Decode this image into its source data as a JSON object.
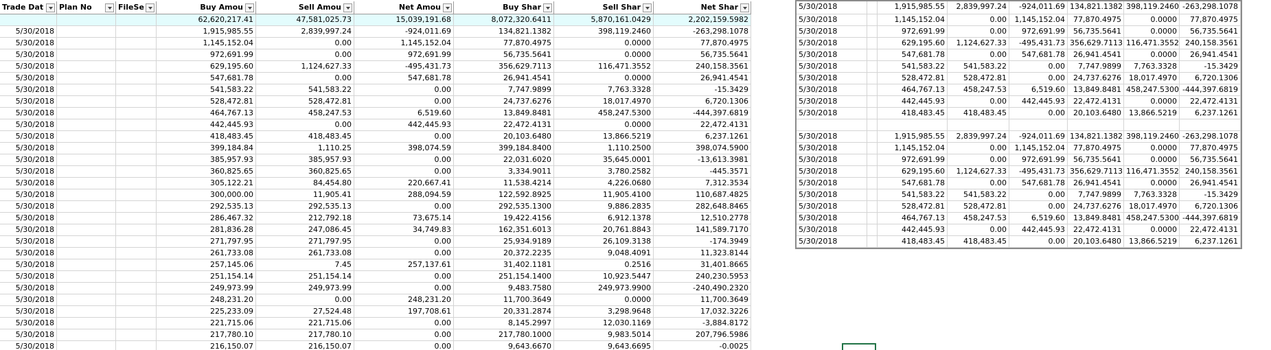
{
  "left_table": {
    "headers": [
      "Trade Dat",
      "Plan No",
      "FileSe",
      "Buy Amou",
      "Sell Amou",
      "Net Amou",
      "Buy Shar",
      "Sell Shar",
      "Net  Shar"
    ],
    "totals": [
      "62,620,217.41",
      "47,581,025.73",
      "15,039,191.68",
      "8,072,320.6411",
      "5,870,161.0429",
      "2,202,159.5982"
    ],
    "rows": [
      [
        "5/30/2018",
        "1,915,985.55",
        "2,839,997.24",
        "-924,011.69",
        "134,821.1382",
        "398,119.2460",
        "-263,298.1078"
      ],
      [
        "5/30/2018",
        "1,145,152.04",
        "0.00",
        "1,145,152.04",
        "77,870.4975",
        "0.0000",
        "77,870.4975"
      ],
      [
        "5/30/2018",
        "972,691.99",
        "0.00",
        "972,691.99",
        "56,735.5641",
        "0.0000",
        "56,735.5641"
      ],
      [
        "5/30/2018",
        "629,195.60",
        "1,124,627.33",
        "-495,431.73",
        "356,629.7113",
        "116,471.3552",
        "240,158.3561"
      ],
      [
        "5/30/2018",
        "547,681.78",
        "0.00",
        "547,681.78",
        "26,941.4541",
        "0.0000",
        "26,941.4541"
      ],
      [
        "5/30/2018",
        "541,583.22",
        "541,583.22",
        "0.00",
        "7,747.9899",
        "7,763.3328",
        "-15.3429"
      ],
      [
        "5/30/2018",
        "528,472.81",
        "528,472.81",
        "0.00",
        "24,737.6276",
        "18,017.4970",
        "6,720.1306"
      ],
      [
        "5/30/2018",
        "464,767.13",
        "458,247.53",
        "6,519.60",
        "13,849.8481",
        "458,247.5300",
        "-444,397.6819"
      ],
      [
        "5/30/2018",
        "442,445.93",
        "0.00",
        "442,445.93",
        "22,472.4131",
        "0.0000",
        "22,472.4131"
      ],
      [
        "5/30/2018",
        "418,483.45",
        "418,483.45",
        "0.00",
        "20,103.6480",
        "13,866.5219",
        "6,237.1261"
      ],
      [
        "5/30/2018",
        "399,184.84",
        "1,110.25",
        "398,074.59",
        "399,184.8400",
        "1,110.2500",
        "398,074.5900"
      ],
      [
        "5/30/2018",
        "385,957.93",
        "385,957.93",
        "0.00",
        "22,031.6020",
        "35,645.0001",
        "-13,613.3981"
      ],
      [
        "5/30/2018",
        "360,825.65",
        "360,825.65",
        "0.00",
        "3,334.9011",
        "3,780.2582",
        "-445.3571"
      ],
      [
        "5/30/2018",
        "305,122.21",
        "84,454.80",
        "220,667.41",
        "11,538.4214",
        "4,226.0680",
        "7,312.3534"
      ],
      [
        "5/30/2018",
        "300,000.00",
        "11,905.41",
        "288,094.59",
        "122,592.8925",
        "11,905.4100",
        "110,687.4825"
      ],
      [
        "5/30/2018",
        "292,535.13",
        "292,535.13",
        "0.00",
        "292,535.1300",
        "9,886.2835",
        "282,648.8465"
      ],
      [
        "5/30/2018",
        "286,467.32",
        "212,792.18",
        "73,675.14",
        "19,422.4156",
        "6,912.1378",
        "12,510.2778"
      ],
      [
        "5/30/2018",
        "281,836.28",
        "247,086.45",
        "34,749.83",
        "162,351.6013",
        "20,761.8843",
        "141,589.7170"
      ],
      [
        "5/30/2018",
        "271,797.95",
        "271,797.95",
        "0.00",
        "25,934.9189",
        "26,109.3138",
        "-174.3949"
      ],
      [
        "5/30/2018",
        "261,733.08",
        "261,733.08",
        "0.00",
        "20,372.2235",
        "9,048.4091",
        "11,323.8144"
      ],
      [
        "5/30/2018",
        "257,145.06",
        "7.45",
        "257,137.61",
        "31,402.1181",
        "0.2516",
        "31,401.8665"
      ],
      [
        "5/30/2018",
        "251,154.14",
        "251,154.14",
        "0.00",
        "251,154.1400",
        "10,923.5447",
        "240,230.5953"
      ],
      [
        "5/30/2018",
        "249,973.99",
        "249,973.99",
        "0.00",
        "9,483.7580",
        "249,973.9900",
        "-240,490.2320"
      ],
      [
        "5/30/2018",
        "248,231.20",
        "0.00",
        "248,231.20",
        "11,700.3649",
        "0.0000",
        "11,700.3649"
      ],
      [
        "5/30/2018",
        "225,233.09",
        "27,524.48",
        "197,708.61",
        "20,331.2874",
        "3,298.9648",
        "17,032.3226"
      ],
      [
        "5/30/2018",
        "221,715.06",
        "221,715.06",
        "0.00",
        "8,145.2997",
        "12,030.1169",
        "-3,884.8172"
      ],
      [
        "5/30/2018",
        "217,780.10",
        "217,780.10",
        "0.00",
        "217,780.1000",
        "9,983.5014",
        "207,796.5986"
      ],
      [
        "5/30/2018",
        "216,150.07",
        "216,150.07",
        "0.00",
        "9,643.6670",
        "9,643.6695",
        "-0.0025"
      ]
    ]
  },
  "right_table": {
    "blocks": [
      {
        "rows": [
          [
            "5/30/2018",
            "1,915,985.55",
            "2,839,997.24",
            "-924,011.69",
            "134,821.1382",
            "398,119.2460",
            "-263,298.1078"
          ],
          [
            "5/30/2018",
            "1,145,152.04",
            "0.00",
            "1,145,152.04",
            "77,870.4975",
            "0.0000",
            "77,870.4975"
          ],
          [
            "5/30/2018",
            "972,691.99",
            "0.00",
            "972,691.99",
            "56,735.5641",
            "0.0000",
            "56,735.5641"
          ],
          [
            "5/30/2018",
            "629,195.60",
            "1,124,627.33",
            "-495,431.73",
            "356,629.7113",
            "116,471.3552",
            "240,158.3561"
          ],
          [
            "5/30/2018",
            "547,681.78",
            "0.00",
            "547,681.78",
            "26,941.4541",
            "0.0000",
            "26,941.4541"
          ],
          [
            "5/30/2018",
            "541,583.22",
            "541,583.22",
            "0.00",
            "7,747.9899",
            "7,763.3328",
            "-15.3429"
          ],
          [
            "5/30/2018",
            "528,472.81",
            "528,472.81",
            "0.00",
            "24,737.6276",
            "18,017.4970",
            "6,720.1306"
          ],
          [
            "5/30/2018",
            "464,767.13",
            "458,247.53",
            "6,519.60",
            "13,849.8481",
            "458,247.5300",
            "-444,397.6819"
          ],
          [
            "5/30/2018",
            "442,445.93",
            "0.00",
            "442,445.93",
            "22,472.4131",
            "0.0000",
            "22,472.4131"
          ],
          [
            "5/30/2018",
            "418,483.45",
            "418,483.45",
            "0.00",
            "20,103.6480",
            "13,866.5219",
            "6,237.1261"
          ]
        ]
      },
      {
        "rows": [
          [
            "5/30/2018",
            "1,915,985.55",
            "2,839,997.24",
            "-924,011.69",
            "134,821.1382",
            "398,119.2460",
            "-263,298.1078"
          ],
          [
            "5/30/2018",
            "1,145,152.04",
            "0.00",
            "1,145,152.04",
            "77,870.4975",
            "0.0000",
            "77,870.4975"
          ],
          [
            "5/30/2018",
            "972,691.99",
            "0.00",
            "972,691.99",
            "56,735.5641",
            "0.0000",
            "56,735.5641"
          ],
          [
            "5/30/2018",
            "629,195.60",
            "1,124,627.33",
            "-495,431.73",
            "356,629.7113",
            "116,471.3552",
            "240,158.3561"
          ],
          [
            "5/30/2018",
            "547,681.78",
            "0.00",
            "547,681.78",
            "26,941.4541",
            "0.0000",
            "26,941.4541"
          ],
          [
            "5/30/2018",
            "541,583.22",
            "541,583.22",
            "0.00",
            "7,747.9899",
            "7,763.3328",
            "-15.3429"
          ],
          [
            "5/30/2018",
            "528,472.81",
            "528,472.81",
            "0.00",
            "24,737.6276",
            "18,017.4970",
            "6,720.1306"
          ],
          [
            "5/30/2018",
            "464,767.13",
            "458,247.53",
            "6,519.60",
            "13,849.8481",
            "458,247.5300",
            "-444,397.6819"
          ],
          [
            "5/30/2018",
            "442,445.93",
            "0.00",
            "442,445.93",
            "22,472.4131",
            "0.0000",
            "22,472.4131"
          ],
          [
            "5/30/2018",
            "418,483.45",
            "418,483.45",
            "0.00",
            "20,103.6480",
            "13,866.5219",
            "6,237.1261"
          ]
        ]
      }
    ]
  }
}
